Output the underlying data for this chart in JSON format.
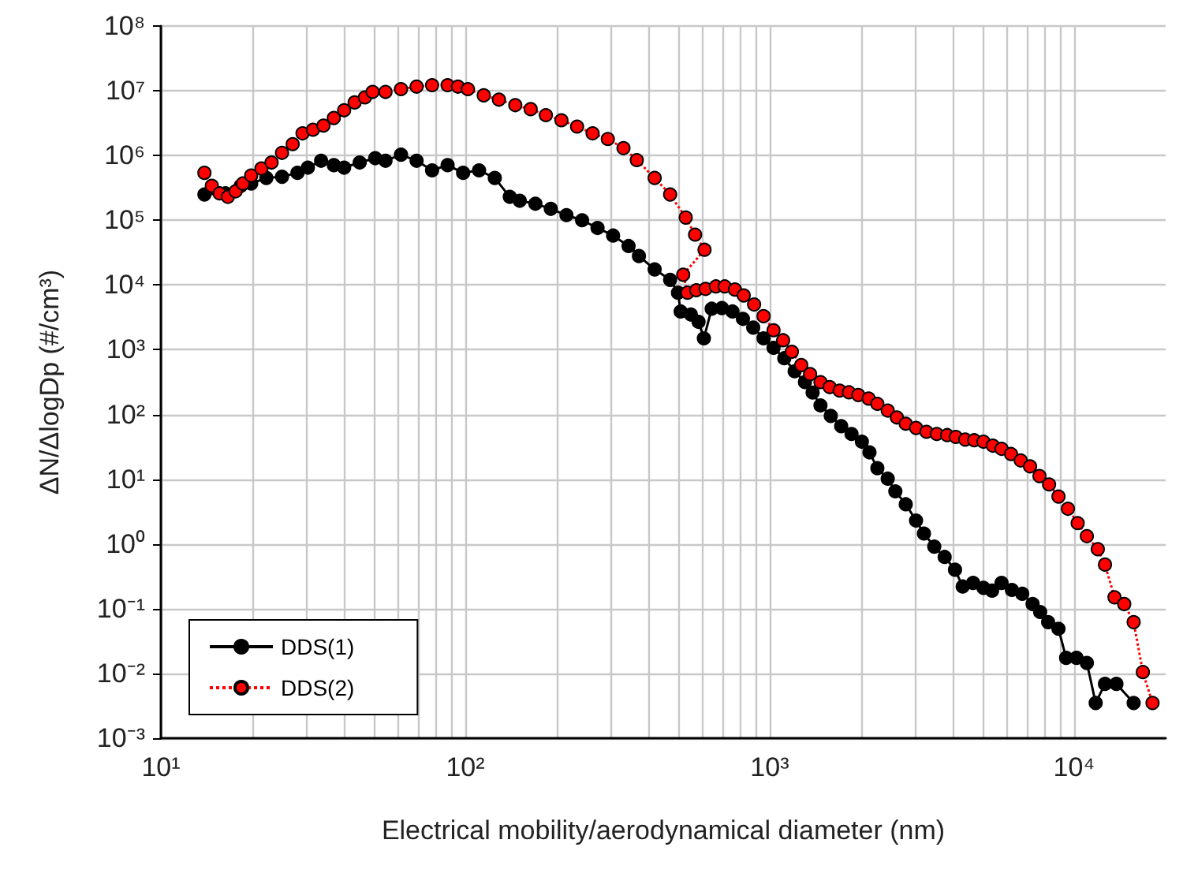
{
  "chart_data": {
    "type": "line",
    "xlabel": "Electrical mobility/aerodynamical diameter (nm)",
    "ylabel": "ΔN/ΔlogDp (#/cm³)",
    "log": "xy",
    "grid": true,
    "legend": "bottom left",
    "marker": "circle",
    "xlim": [
      10,
      20000
    ],
    "ylim": [
      0.001,
      100000000
    ],
    "xticks": [
      {
        "value": 10,
        "label": "10¹"
      },
      {
        "value": 20,
        "label": null
      },
      {
        "value": 30,
        "label": null
      },
      {
        "value": 40,
        "label": null
      },
      {
        "value": 50,
        "label": null
      },
      {
        "value": 60,
        "label": null
      },
      {
        "value": 70,
        "label": null
      },
      {
        "value": 80,
        "label": null
      },
      {
        "value": 90,
        "label": null
      },
      {
        "value": 100,
        "label": "10²"
      },
      {
        "value": 200,
        "label": null
      },
      {
        "value": 300,
        "label": null
      },
      {
        "value": 400,
        "label": null
      },
      {
        "value": 500,
        "label": null
      },
      {
        "value": 600,
        "label": null
      },
      {
        "value": 700,
        "label": null
      },
      {
        "value": 800,
        "label": null
      },
      {
        "value": 900,
        "label": null
      },
      {
        "value": 1000,
        "label": "10³"
      },
      {
        "value": 2000,
        "label": null
      },
      {
        "value": 3000,
        "label": null
      },
      {
        "value": 4000,
        "label": null
      },
      {
        "value": 5000,
        "label": null
      },
      {
        "value": 6000,
        "label": null
      },
      {
        "value": 7000,
        "label": null
      },
      {
        "value": 8000,
        "label": null
      },
      {
        "value": 9000,
        "label": null
      },
      {
        "value": 10000,
        "label": "10⁴"
      }
    ],
    "yticks": [
      {
        "value": 0.001,
        "label": "10⁻³"
      },
      {
        "value": 0.01,
        "label": "10⁻²"
      },
      {
        "value": 0.1,
        "label": "10⁻¹"
      },
      {
        "value": 1,
        "label": "10⁰"
      },
      {
        "value": 10,
        "label": "10¹"
      },
      {
        "value": 100,
        "label": "10²"
      },
      {
        "value": 1000,
        "label": "10³"
      },
      {
        "value": 10000,
        "label": "10⁴"
      },
      {
        "value": 100000,
        "label": "10⁵"
      },
      {
        "value": 1000000,
        "label": "10⁶"
      },
      {
        "value": 10000000,
        "label": "10⁷"
      },
      {
        "value": 100000000,
        "label": "10⁸"
      }
    ],
    "series": [
      {
        "name": "DDS(1)",
        "color": "#000000",
        "line_style": "solid",
        "x": [
          13.9,
          16.3,
          18.3,
          19.8,
          22.2,
          25,
          28.1,
          30.4,
          33.6,
          37,
          40,
          45,
          50.6,
          54.7,
          61.5,
          69.2,
          77.8,
          87.5,
          98.4,
          111,
          125,
          140,
          151,
          170,
          191,
          215,
          242,
          272,
          306,
          344,
          372,
          419,
          471,
          500,
          510,
          551,
          584,
          608,
          645,
          697,
          755,
          817,
          883,
          955,
          1030,
          1117,
          1208,
          1306,
          1384,
          1469,
          1588,
          1718,
          1858,
          2009,
          2128,
          2259,
          2443,
          2588,
          2800,
          3027,
          3213,
          3474,
          3758,
          4064,
          4307,
          4660,
          5040,
          5380,
          5780,
          6250,
          6760,
          7310,
          7740,
          8220,
          8890,
          9420,
          10190,
          11020,
          11780,
          12640,
          13780,
          15700
        ],
        "values": [
          250000,
          260000,
          340000,
          370000,
          450000,
          470000,
          540000,
          650000,
          830000,
          710000,
          650000,
          780000,
          910000,
          830000,
          1030000,
          830000,
          590000,
          710000,
          540000,
          590000,
          450000,
          230000,
          200000,
          180000,
          150000,
          120000,
          100000,
          76000,
          58000,
          40000,
          28000,
          17400,
          12000,
          7600,
          3900,
          3500,
          2700,
          1500,
          4300,
          4400,
          3900,
          3000,
          2200,
          1500,
          1070,
          740,
          465,
          316,
          218,
          138,
          95,
          66,
          50,
          38,
          26,
          14.8,
          10.2,
          6.5,
          4.1,
          2.3,
          1.45,
          0.91,
          0.63,
          0.4,
          0.22,
          0.25,
          0.21,
          0.19,
          0.25,
          0.195,
          0.17,
          0.118,
          0.089,
          0.062,
          0.049,
          0.0174,
          0.0174,
          0.0145,
          0.0035,
          0.0069,
          0.0069,
          0.0035
        ]
      },
      {
        "name": "DDS(2)",
        "color": "#ff0000",
        "line_style": "dotted",
        "x": [
          13.9,
          14.7,
          15.6,
          16.6,
          17.6,
          18.6,
          19.8,
          21.4,
          23.1,
          25,
          27.1,
          29.2,
          31.6,
          34.2,
          37,
          40,
          43.3,
          46.8,
          49.6,
          54.7,
          61.5,
          69.2,
          77.8,
          87.5,
          94.6,
          102,
          115,
          129,
          146,
          164,
          184,
          207,
          233,
          262,
          294,
          331,
          366,
          419,
          471,
          530,
          569,
          611,
          520,
          537,
          574,
          616,
          666,
          712,
          769,
          822,
          889,
          955,
          1030,
          1107,
          1183,
          1270,
          1358,
          1469,
          1575,
          1698,
          1822,
          1955,
          2114,
          2259,
          2443,
          2618,
          2800,
          3027,
          3275,
          3540,
          3830,
          4090,
          4390,
          4700,
          5040,
          5410,
          5780,
          6210,
          6680,
          7170,
          7700,
          8280,
          8890,
          9550,
          10280,
          11020,
          11970,
          12640,
          13580,
          14620,
          15700,
          16830,
          18110
        ],
        "values": [
          540000,
          340000,
          260000,
          230000,
          280000,
          370000,
          490000,
          630000,
          780000,
          1100000,
          1500000,
          2200000,
          2500000,
          2900000,
          3800000,
          5000000,
          6600000,
          7900000,
          9600000,
          9600000,
          10600000,
          11600000,
          12200000,
          12200000,
          11600000,
          10600000,
          8500000,
          7300000,
          6000000,
          5200000,
          4200000,
          3500000,
          2800000,
          2200000,
          1800000,
          1300000,
          850000,
          450000,
          250000,
          110000,
          60000,
          35000,
          14400,
          7600,
          8300,
          8700,
          9500,
          9500,
          8500,
          6900,
          5000,
          3300,
          2000,
          1400,
          930,
          580,
          420,
          316,
          265,
          234,
          220,
          200,
          176,
          146,
          115,
          90,
          72,
          62,
          54,
          50,
          48,
          45,
          41,
          40,
          38,
          33,
          29.5,
          24.5,
          19.5,
          15.8,
          11.2,
          8.3,
          5.4,
          3.5,
          2.1,
          1.32,
          0.83,
          0.48,
          0.15,
          0.118,
          0.062,
          0.0105,
          0.0035
        ]
      }
    ]
  }
}
